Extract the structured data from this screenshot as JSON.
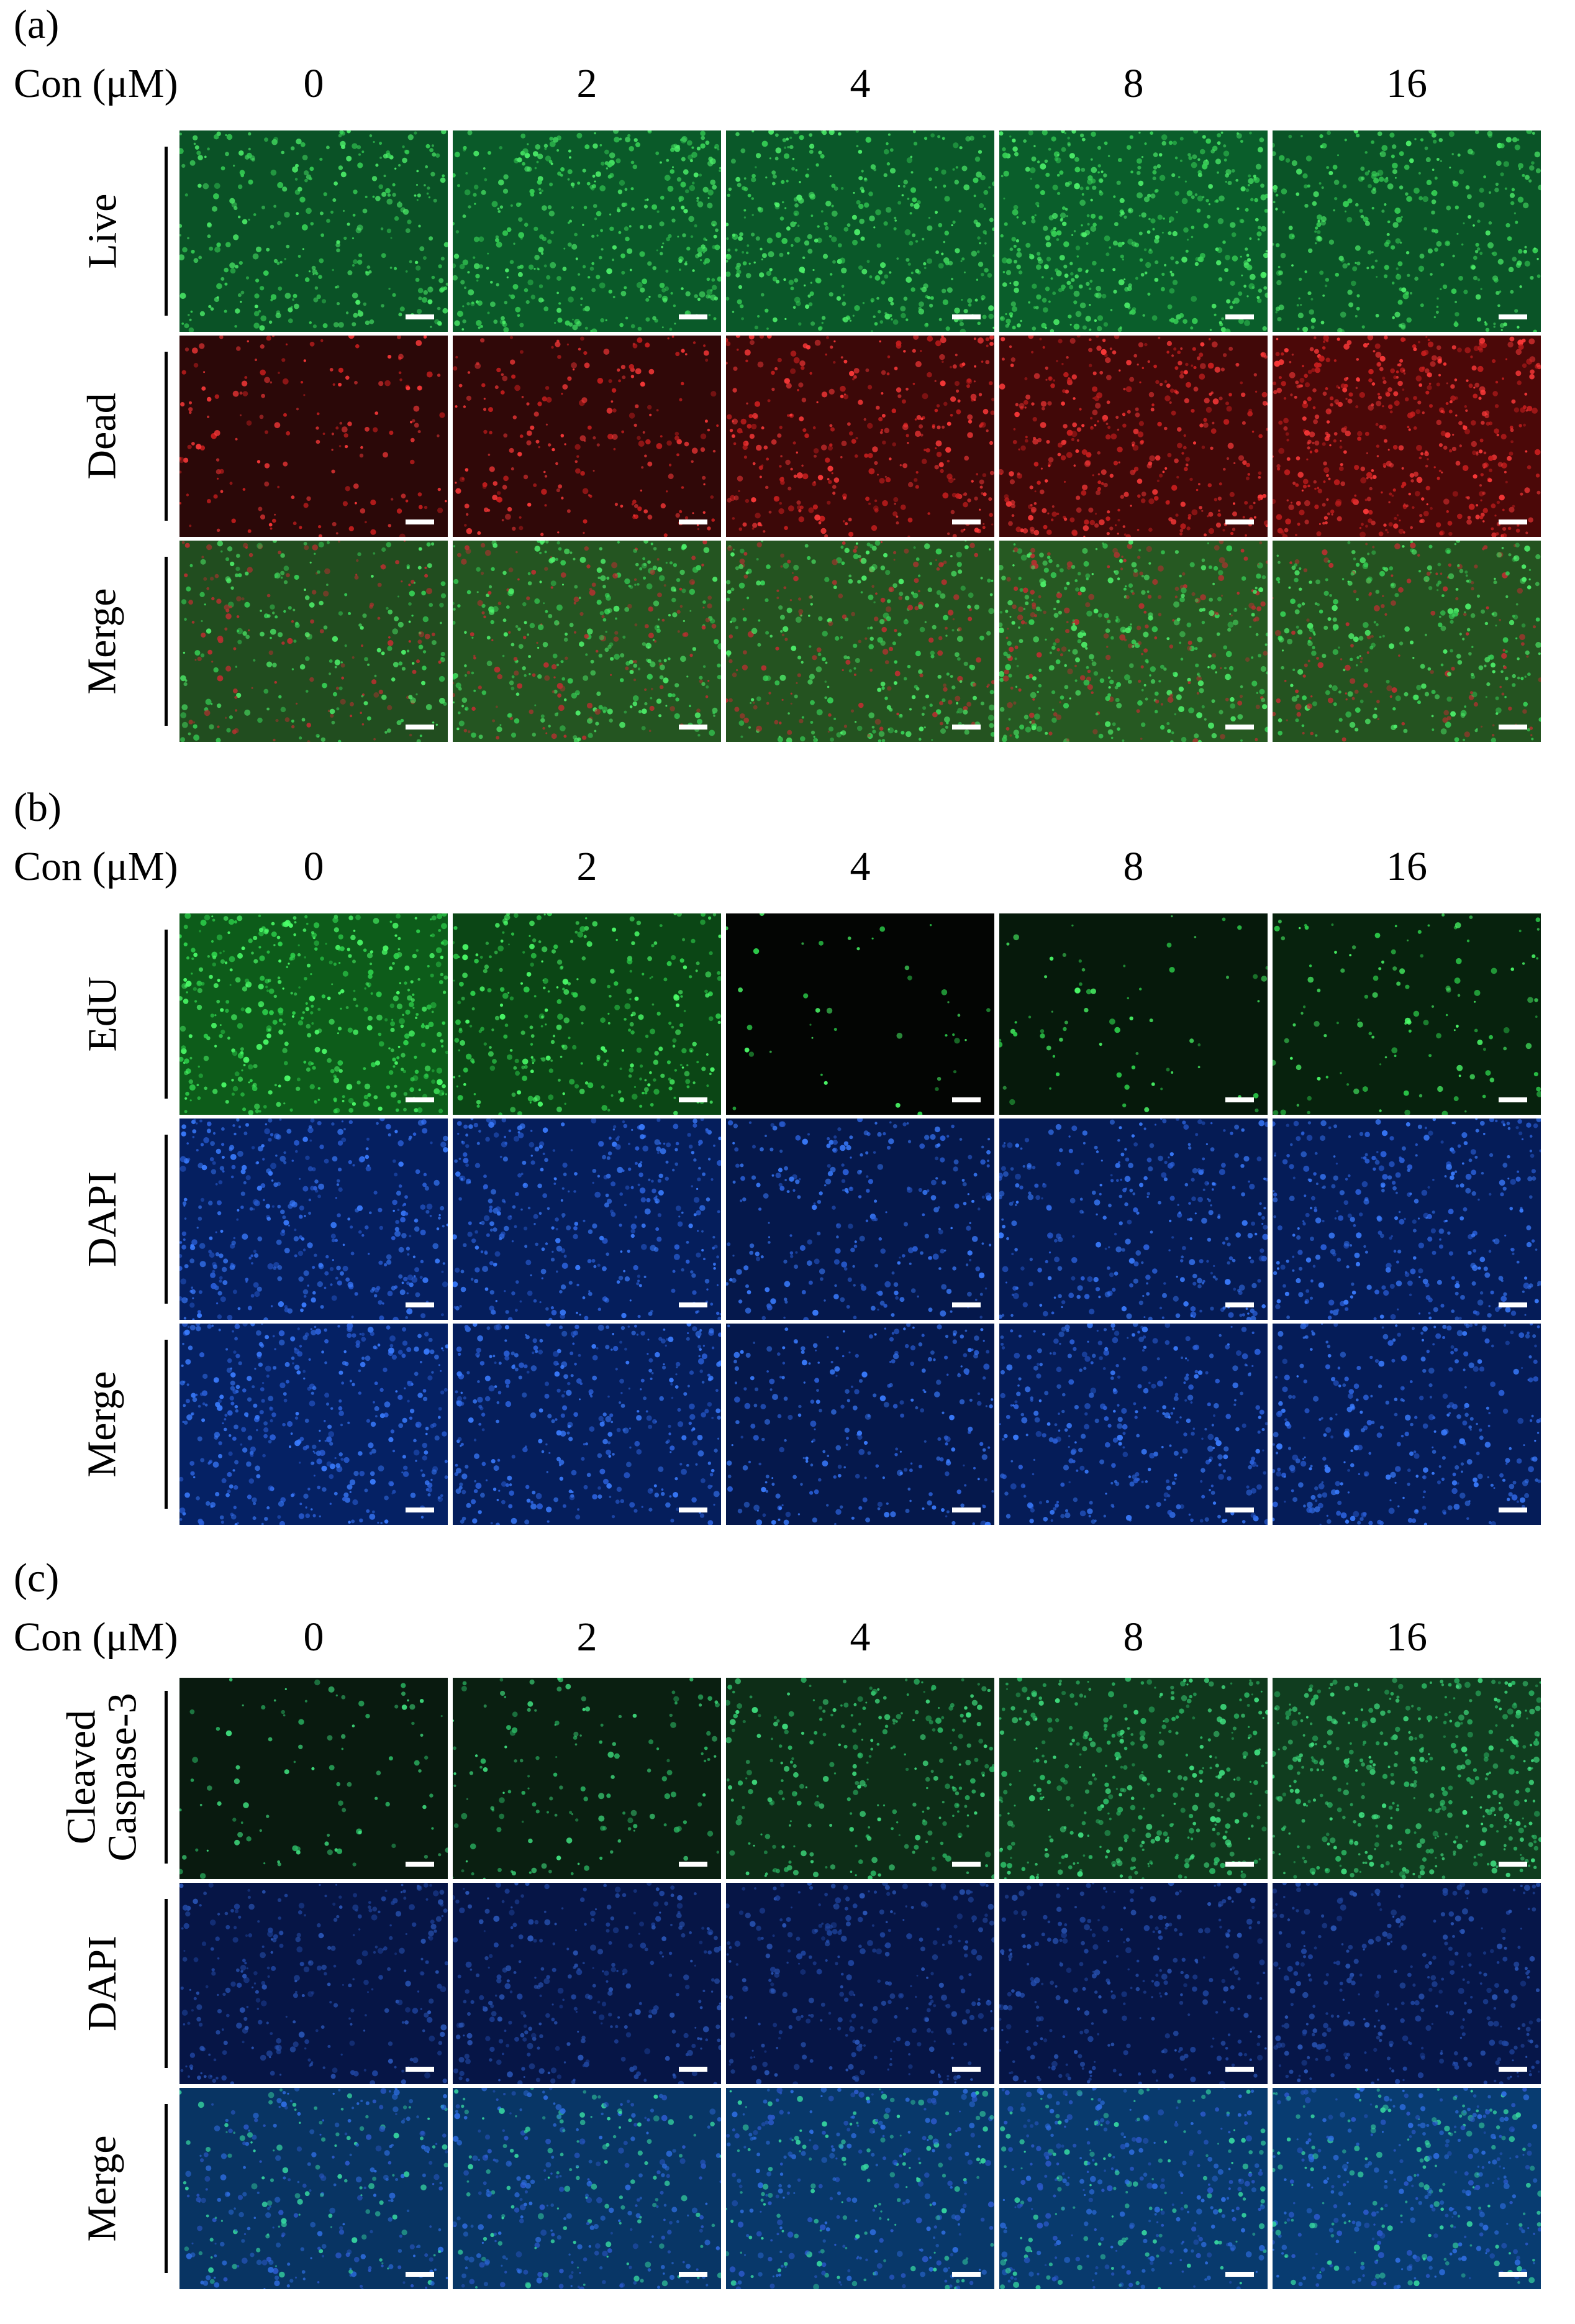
{
  "panels": [
    {
      "label": "(a)",
      "con_label": "Con (μM)",
      "concentrations": [
        "0",
        "2",
        "4",
        "8",
        "16"
      ],
      "rows": [
        {
          "label": "Live",
          "channel": "green",
          "intensity": [
            0.55,
            0.75,
            0.7,
            0.85,
            0.6
          ]
        },
        {
          "label": "Dead",
          "channel": "red",
          "intensity": [
            0.25,
            0.35,
            0.6,
            0.7,
            0.9
          ]
        },
        {
          "label": "Merge",
          "channel": "green-red",
          "intensity": [
            0.55,
            0.75,
            0.7,
            0.85,
            0.7
          ]
        }
      ]
    },
    {
      "label": "(b)",
      "con_label": "Con (μM)",
      "concentrations": [
        "0",
        "2",
        "4",
        "8",
        "16"
      ],
      "rows": [
        {
          "label": "EdU",
          "channel": "edu",
          "intensity": [
            0.8,
            0.55,
            0.0,
            0.05,
            0.15
          ]
        },
        {
          "label": "DAPI",
          "channel": "blue",
          "intensity": [
            0.7,
            0.65,
            0.45,
            0.55,
            0.6
          ]
        },
        {
          "label": "Merge",
          "channel": "blue",
          "intensity": [
            0.75,
            0.65,
            0.45,
            0.6,
            0.6
          ]
        }
      ]
    },
    {
      "label": "(c)",
      "con_label": "Con (μM)",
      "concentrations": [
        "0",
        "2",
        "4",
        "8",
        "16"
      ],
      "rows": [
        {
          "label": "Cleaved Caspase-3",
          "label_line1": "Cleaved",
          "label_line2": "Caspase-3",
          "channel": "caspase",
          "intensity": [
            0.1,
            0.2,
            0.45,
            0.65,
            0.75
          ]
        },
        {
          "label": "DAPI",
          "channel": "dimblue",
          "intensity": [
            0.5,
            0.5,
            0.5,
            0.5,
            0.55
          ]
        },
        {
          "label": "Merge",
          "channel": "blue-green",
          "intensity": [
            0.55,
            0.6,
            0.65,
            0.7,
            0.75
          ]
        }
      ]
    }
  ],
  "colors": {
    "green": "#2fbf4f",
    "red": "#d02020",
    "blue": "#1f4fc0",
    "scale_bar": "#ffffff"
  }
}
